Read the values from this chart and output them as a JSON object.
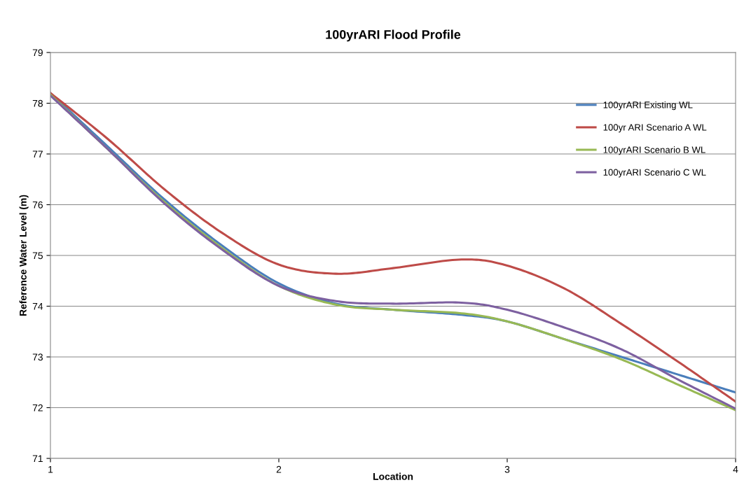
{
  "chart_data": {
    "type": "line",
    "title": "100yrARI Flood Profile",
    "xlabel": "Location",
    "ylabel": "Reference Water Level (m)",
    "xlim": [
      1,
      4
    ],
    "xticks": [
      1,
      2,
      3,
      4
    ],
    "ylim": [
      71,
      79
    ],
    "yticks": [
      71,
      72,
      73,
      74,
      75,
      76,
      77,
      78,
      79
    ],
    "grid": "y",
    "legend": "top right",
    "marker": "none",
    "line_style": "solid",
    "series": [
      {
        "name": "100yrARI Existing WL",
        "color": "#4a7ebb",
        "x": [
          1,
          1.25,
          1.5,
          1.75,
          2,
          2.25,
          2.5,
          2.8,
          3,
          3.25,
          3.5,
          3.75,
          4
        ],
        "values": [
          78.2,
          77.15,
          76.1,
          75.2,
          74.45,
          74.05,
          73.93,
          73.83,
          73.7,
          73.35,
          73.0,
          72.65,
          72.3
        ]
      },
      {
        "name": "100yr ARI Scenario A WL",
        "color": "#be4b48",
        "x": [
          1,
          1.25,
          1.5,
          1.75,
          2,
          2.25,
          2.5,
          2.8,
          3,
          3.25,
          3.5,
          3.75,
          4
        ],
        "values": [
          78.2,
          77.3,
          76.3,
          75.45,
          74.82,
          74.64,
          74.75,
          74.92,
          74.8,
          74.35,
          73.65,
          72.9,
          72.12
        ]
      },
      {
        "name": "100yrARI Scenario B WL",
        "color": "#98b954",
        "x": [
          1,
          1.25,
          1.5,
          1.75,
          2,
          2.25,
          2.5,
          2.8,
          3,
          3.25,
          3.5,
          3.75,
          4
        ],
        "values": [
          78.17,
          77.1,
          76.05,
          75.15,
          74.4,
          74.03,
          73.93,
          73.86,
          73.7,
          73.35,
          72.95,
          72.45,
          71.95
        ]
      },
      {
        "name": "100yrARI Scenario C WL",
        "color": "#7d60a0",
        "x": [
          1,
          1.25,
          1.5,
          1.75,
          2,
          2.25,
          2.5,
          2.8,
          3,
          3.25,
          3.5,
          3.75,
          4
        ],
        "values": [
          78.15,
          77.1,
          76.02,
          75.12,
          74.4,
          74.1,
          74.05,
          74.07,
          73.93,
          73.58,
          73.15,
          72.55,
          71.98
        ]
      }
    ]
  }
}
